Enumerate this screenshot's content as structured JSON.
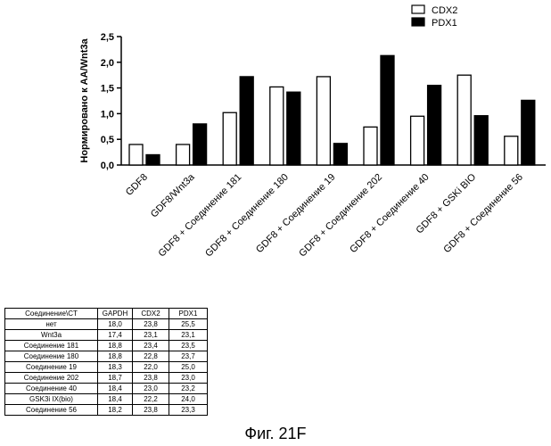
{
  "chart_data": {
    "type": "bar",
    "ylabel": "Нормировано к AA/Wnt3a",
    "ylim": [
      0,
      2.5
    ],
    "yticks": [
      "0,0",
      "0,5",
      "1,0",
      "1,5",
      "2,0",
      "2,5"
    ],
    "categories": [
      "GDF8",
      "GDF8/Wnt3a",
      "GDF8 + Соединение 181",
      "GDF8 + Соединение 180",
      "GDF8 + Соединение 19",
      "GDF8 + Соединение 202",
      "GDF8 + Соединение 40",
      "GDF8 + GSKi BIO",
      "GDF8 + Соединение 56"
    ],
    "series": [
      {
        "name": "CDX2",
        "color": "#ffffff",
        "values": [
          0.4,
          0.4,
          1.02,
          1.52,
          1.72,
          0.74,
          0.95,
          1.75,
          0.56
        ]
      },
      {
        "name": "PDX1",
        "color": "#000000",
        "values": [
          0.2,
          0.8,
          1.72,
          1.42,
          0.42,
          2.13,
          1.55,
          0.96,
          1.26
        ]
      }
    ],
    "legend_position": "top-right",
    "grid": false
  },
  "table": {
    "headers": [
      "Соединение\\CT",
      "GAPDH",
      "CDX2",
      "PDX1"
    ],
    "rows": [
      [
        "нет",
        "18,0",
        "23,8",
        "25,5"
      ],
      [
        "Wnt3a",
        "17,4",
        "23,1",
        "23,1"
      ],
      [
        "Соединение 181",
        "18,8",
        "23,4",
        "23,5"
      ],
      [
        "Соединение 180",
        "18,8",
        "22,8",
        "23,7"
      ],
      [
        "Соединение 19",
        "18,3",
        "22,0",
        "25,0"
      ],
      [
        "Соединение 202",
        "18,7",
        "23,8",
        "23,0"
      ],
      [
        "Соединение 40",
        "18,4",
        "23,0",
        "23,2"
      ],
      [
        "GSK3i IX(bio)",
        "18,4",
        "22,2",
        "24,0"
      ],
      [
        "Соединение 56",
        "18,2",
        "23,8",
        "23,3"
      ]
    ]
  },
  "caption": "Фиг. 21F"
}
